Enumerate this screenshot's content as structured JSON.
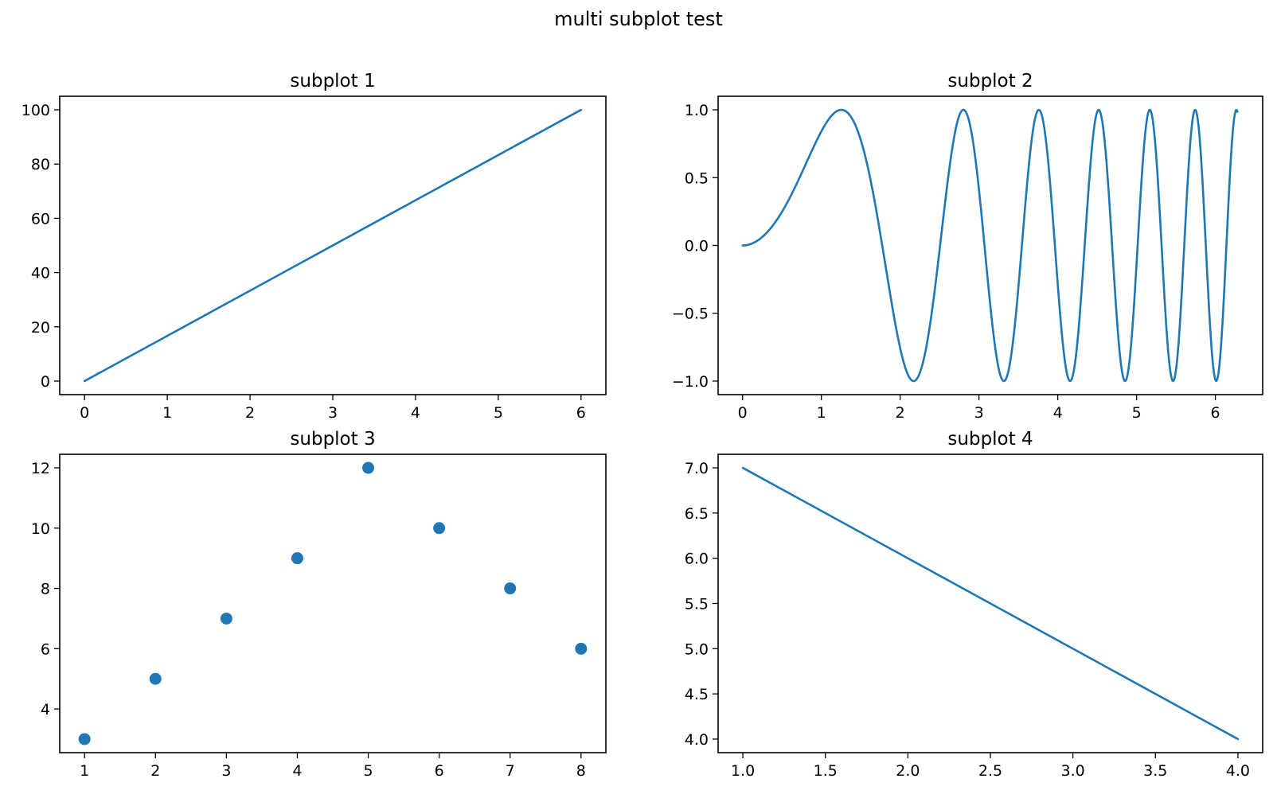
{
  "figure": {
    "title": "multi subplot test"
  },
  "colors": {
    "series": "#1f77b4"
  },
  "chart_data": [
    {
      "id": "sp1",
      "type": "line",
      "title": "subplot 1",
      "xlabel": "",
      "ylabel": "",
      "xlim": [
        -0.3,
        6.3
      ],
      "ylim": [
        -5,
        105
      ],
      "xticks": [
        0,
        1,
        2,
        3,
        4,
        5,
        6
      ],
      "xtick_labels": [
        "0",
        "1",
        "2",
        "3",
        "4",
        "5",
        "6"
      ],
      "yticks": [
        0,
        20,
        40,
        60,
        80,
        100
      ],
      "ytick_labels": [
        "0",
        "20",
        "40",
        "60",
        "80",
        "100"
      ],
      "grid": false,
      "series": [
        {
          "x": [
            0,
            6
          ],
          "y": [
            0,
            100
          ]
        }
      ]
    },
    {
      "id": "sp2",
      "type": "line",
      "title": "subplot 2",
      "xlabel": "",
      "ylabel": "",
      "xlim": [
        -0.31,
        6.6
      ],
      "ylim": [
        -1.1,
        1.1
      ],
      "xticks": [
        0,
        1,
        2,
        3,
        4,
        5,
        6
      ],
      "xtick_labels": [
        "0",
        "1",
        "2",
        "3",
        "4",
        "5",
        "6"
      ],
      "yticks": [
        -1.0,
        -0.5,
        0.0,
        0.5,
        1.0
      ],
      "ytick_labels": [
        "−1.0",
        "−0.5",
        "0.0",
        "0.5",
        "1.0"
      ],
      "grid": false,
      "series": [
        {
          "function": "sin(x^2)",
          "x_range": [
            0,
            6.28
          ],
          "samples": 600
        }
      ]
    },
    {
      "id": "sp3",
      "type": "scatter",
      "title": "subplot 3",
      "xlabel": "",
      "ylabel": "",
      "xlim": [
        0.65,
        8.35
      ],
      "ylim": [
        2.55,
        12.45
      ],
      "xticks": [
        1,
        2,
        3,
        4,
        5,
        6,
        7,
        8
      ],
      "xtick_labels": [
        "1",
        "2",
        "3",
        "4",
        "5",
        "6",
        "7",
        "8"
      ],
      "yticks": [
        4,
        6,
        8,
        10,
        12
      ],
      "ytick_labels": [
        "4",
        "6",
        "8",
        "10",
        "12"
      ],
      "grid": false,
      "series": [
        {
          "x": [
            1,
            2,
            3,
            4,
            5,
            6,
            7,
            8
          ],
          "y": [
            3,
            5,
            7,
            9,
            12,
            10,
            8,
            6
          ]
        }
      ]
    },
    {
      "id": "sp4",
      "type": "line",
      "title": "subplot 4",
      "xlabel": "",
      "ylabel": "",
      "xlim": [
        0.85,
        4.15
      ],
      "ylim": [
        3.85,
        7.15
      ],
      "xticks": [
        1.0,
        1.5,
        2.0,
        2.5,
        3.0,
        3.5,
        4.0
      ],
      "xtick_labels": [
        "1.0",
        "1.5",
        "2.0",
        "2.5",
        "3.0",
        "3.5",
        "4.0"
      ],
      "yticks": [
        4.0,
        4.5,
        5.0,
        5.5,
        6.0,
        6.5,
        7.0
      ],
      "ytick_labels": [
        "4.0",
        "4.5",
        "5.0",
        "5.5",
        "6.0",
        "6.5",
        "7.0"
      ],
      "grid": false,
      "series": [
        {
          "x": [
            1,
            4
          ],
          "y": [
            7,
            4
          ]
        }
      ]
    }
  ]
}
